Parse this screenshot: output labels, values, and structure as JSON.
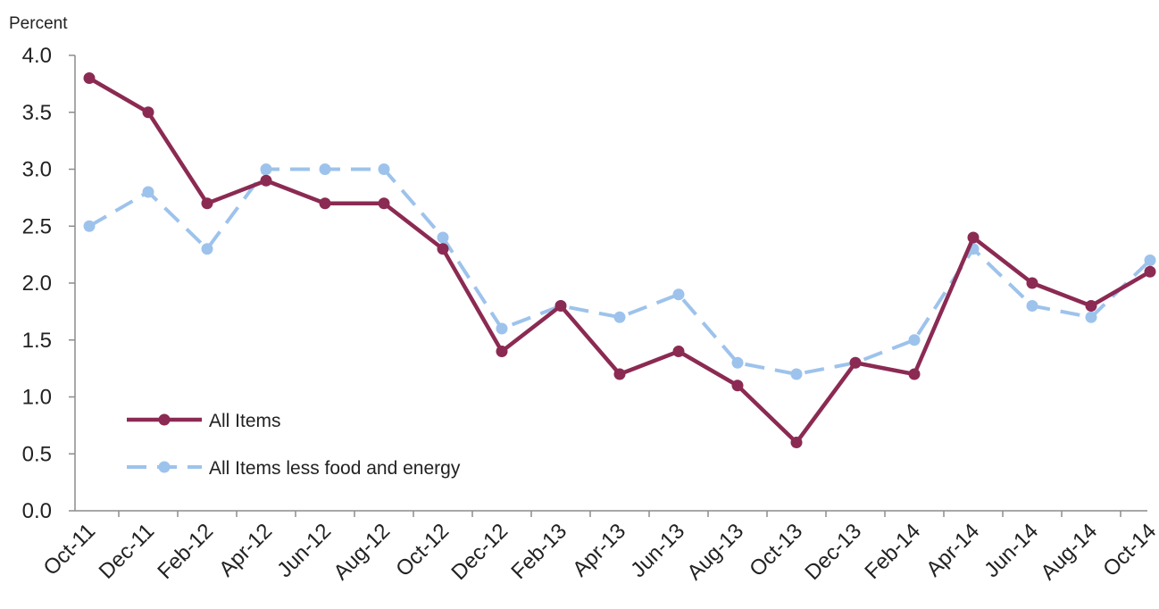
{
  "chart_data": {
    "type": "line",
    "title": "",
    "xlabel": "",
    "ylabel": "Percent",
    "ylim": [
      0,
      4.0
    ],
    "yticks": [
      "0.0",
      "0.5",
      "1.0",
      "1.5",
      "2.0",
      "2.5",
      "3.0",
      "3.5",
      "4.0"
    ],
    "grid": false,
    "legend_position": "bottom-left",
    "categories": [
      "Oct-11",
      "Dec-11",
      "Feb-12",
      "Apr-12",
      "Jun-12",
      "Aug-12",
      "Oct-12",
      "Dec-12",
      "Feb-13",
      "Apr-13",
      "Jun-13",
      "Aug-13",
      "Oct-13",
      "Dec-13",
      "Feb-14",
      "Apr-14",
      "Jun-14",
      "Aug-14",
      "Oct-14"
    ],
    "series": [
      {
        "name": "All Items",
        "color": "#8B2A52",
        "style": "solid",
        "values": [
          3.8,
          3.5,
          2.7,
          2.9,
          2.7,
          2.7,
          2.3,
          1.4,
          1.8,
          1.2,
          1.4,
          1.1,
          0.6,
          1.3,
          1.2,
          2.4,
          2.0,
          1.8,
          2.1
        ]
      },
      {
        "name": "All Items less food and energy",
        "color": "#9DC3EC",
        "style": "dashed",
        "values": [
          2.5,
          2.8,
          2.3,
          3.0,
          3.0,
          3.0,
          2.4,
          1.6,
          1.8,
          1.7,
          1.9,
          1.3,
          1.2,
          1.3,
          1.5,
          2.3,
          1.8,
          1.7,
          2.2
        ]
      }
    ]
  }
}
